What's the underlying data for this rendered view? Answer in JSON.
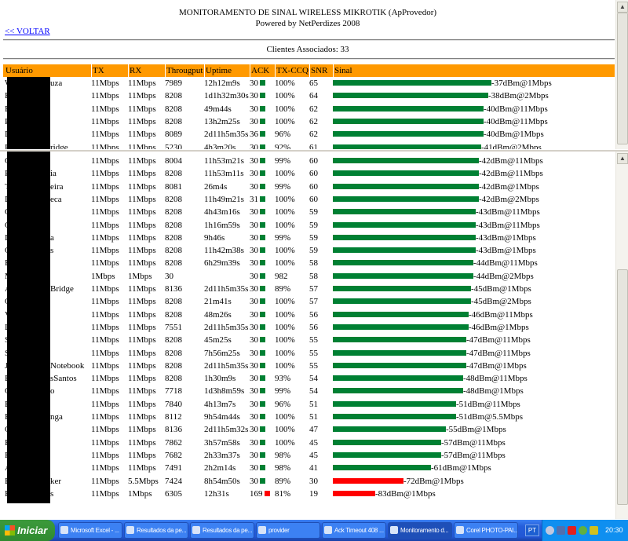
{
  "header": {
    "title": "MONITORAMENTO DE SINAL WIRELESS MIKROTIK (ApProvedor)",
    "subtitle": "Powered by NetPerdizes 2008",
    "back_link": "<< VOLTAR",
    "clients": "Clientes Associados: 33"
  },
  "columns": [
    "Usuário",
    "TX",
    "RX",
    "Througput",
    "Uptime",
    "ACK",
    "TX-CCQ",
    "SNR",
    "Sinal"
  ],
  "colors": {
    "header_bg": "#ff9900",
    "good_signal": "#008033",
    "bad_signal": "#ff0000"
  },
  "rows": [
    {
      "user": "W",
      "user_end": "uza",
      "tx": "11Mbps",
      "rx": "11Mbps",
      "thr": "7989",
      "up": "12h12m9s",
      "ack": "30",
      "ccq": "100%",
      "snr": "65",
      "dbm": -37,
      "signal": "-37dBm@1Mbps",
      "status": "good"
    },
    {
      "user": "E",
      "user_end": "",
      "tx": "11Mbps",
      "rx": "11Mbps",
      "thr": "8208",
      "up": "1d1h32m30s",
      "ack": "30",
      "ccq": "100%",
      "snr": "64",
      "dbm": -38,
      "signal": "-38dBm@2Mbps",
      "status": "good"
    },
    {
      "user": "B",
      "user_end": "",
      "tx": "11Mbps",
      "rx": "11Mbps",
      "thr": "8208",
      "up": "49m44s",
      "ack": "30",
      "ccq": "100%",
      "snr": "62",
      "dbm": -40,
      "signal": "-40dBm@11Mbps",
      "status": "good"
    },
    {
      "user": "P",
      "user_end": "",
      "tx": "11Mbps",
      "rx": "11Mbps",
      "thr": "8208",
      "up": "13h2m25s",
      "ack": "30",
      "ccq": "100%",
      "snr": "62",
      "dbm": -40,
      "signal": "-40dBm@11Mbps",
      "status": "good"
    },
    {
      "user": "D",
      "user_end": "",
      "tx": "11Mbps",
      "rx": "11Mbps",
      "thr": "8089",
      "up": "2d11h5m35s",
      "ack": "36",
      "ccq": "96%",
      "snr": "62",
      "dbm": -40,
      "signal": "-40dBm@1Mbps",
      "status": "good"
    },
    {
      "user": "P",
      "user_end": "ridge",
      "tx": "11Mbps",
      "rx": "11Mbps",
      "thr": "5230",
      "up": "4h3m20s",
      "ack": "30",
      "ccq": "92%",
      "snr": "61",
      "dbm": -41,
      "signal": "-41dBm@2Mbps",
      "status": "good"
    },
    {
      "user": "C",
      "user_end": "",
      "tx": "11Mbps",
      "rx": "11Mbps",
      "thr": "8004",
      "up": "11h53m21s",
      "ack": "30",
      "ccq": "99%",
      "snr": "60",
      "dbm": -42,
      "signal": "-42dBm@11Mbps",
      "status": "good"
    },
    {
      "user": "Pa",
      "user_end": "ia",
      "tx": "11Mbps",
      "rx": "11Mbps",
      "thr": "8208",
      "up": "11h53m11s",
      "ack": "30",
      "ccq": "100%",
      "snr": "60",
      "dbm": -42,
      "signal": "-42dBm@11Mbps",
      "status": "good"
    },
    {
      "user": "Te",
      "user_end": "eira",
      "tx": "11Mbps",
      "rx": "11Mbps",
      "thr": "8081",
      "up": "26m4s",
      "ack": "30",
      "ccq": "99%",
      "snr": "60",
      "dbm": -42,
      "signal": "-42dBm@1Mbps",
      "status": "good"
    },
    {
      "user": "D",
      "user_end": "eca",
      "tx": "11Mbps",
      "rx": "11Mbps",
      "thr": "8208",
      "up": "11h49m21s",
      "ack": "31",
      "ccq": "100%",
      "snr": "60",
      "dbm": -42,
      "signal": "-42dBm@2Mbps",
      "status": "good"
    },
    {
      "user": "C",
      "user_end": "",
      "tx": "11Mbps",
      "rx": "11Mbps",
      "thr": "8208",
      "up": "4h43m16s",
      "ack": "30",
      "ccq": "100%",
      "snr": "59",
      "dbm": -43,
      "signal": "-43dBm@11Mbps",
      "status": "good"
    },
    {
      "user": "C",
      "user_end": "",
      "tx": "11Mbps",
      "rx": "11Mbps",
      "thr": "8208",
      "up": "1h16m59s",
      "ack": "30",
      "ccq": "100%",
      "snr": "59",
      "dbm": -43,
      "signal": "-43dBm@11Mbps",
      "status": "good"
    },
    {
      "user": "D",
      "user_end": "a",
      "tx": "11Mbps",
      "rx": "11Mbps",
      "thr": "8208",
      "up": "9h46s",
      "ack": "30",
      "ccq": "99%",
      "snr": "59",
      "dbm": -43,
      "signal": "-43dBm@1Mbps",
      "status": "good"
    },
    {
      "user": "G",
      "user_end": "s",
      "tx": "11Mbps",
      "rx": "11Mbps",
      "thr": "8208",
      "up": "11h42m38s",
      "ack": "30",
      "ccq": "100%",
      "snr": "59",
      "dbm": -43,
      "signal": "-43dBm@1Mbps",
      "status": "good"
    },
    {
      "user": "E",
      "user_end": "",
      "tx": "11Mbps",
      "rx": "11Mbps",
      "thr": "8208",
      "up": "6h29m39s",
      "ack": "30",
      "ccq": "100%",
      "snr": "58",
      "dbm": -44,
      "signal": "-44dBm@11Mbps",
      "status": "good"
    },
    {
      "user": "M",
      "user_end": "",
      "tx": "1Mbps",
      "rx": "1Mbps",
      "thr": "30",
      "up": "",
      "ack": "30",
      "ccq": "982",
      "snr": "58",
      "dbm": -44,
      "signal": "-44dBm@2Mbps",
      "status": "good"
    },
    {
      "user": "A",
      "user_end": "Bridge",
      "tx": "11Mbps",
      "rx": "11Mbps",
      "thr": "8136",
      "up": "2d11h5m35s",
      "ack": "30",
      "ccq": "89%",
      "snr": "57",
      "dbm": -45,
      "signal": "-45dBm@1Mbps",
      "status": "good"
    },
    {
      "user": "G",
      "user_end": "",
      "tx": "11Mbps",
      "rx": "11Mbps",
      "thr": "8208",
      "up": "21m41s",
      "ack": "30",
      "ccq": "100%",
      "snr": "57",
      "dbm": -45,
      "signal": "-45dBm@2Mbps",
      "status": "good"
    },
    {
      "user": "V",
      "user_end": "",
      "tx": "11Mbps",
      "rx": "11Mbps",
      "thr": "8208",
      "up": "48m26s",
      "ack": "30",
      "ccq": "100%",
      "snr": "56",
      "dbm": -46,
      "signal": "-46dBm@11Mbps",
      "status": "good"
    },
    {
      "user": "La",
      "user_end": "",
      "tx": "11Mbps",
      "rx": "11Mbps",
      "thr": "7551",
      "up": "2d11h5m35s",
      "ack": "30",
      "ccq": "100%",
      "snr": "56",
      "dbm": -46,
      "signal": "-46dBm@1Mbps",
      "status": "good"
    },
    {
      "user": "Sa",
      "user_end": "",
      "tx": "11Mbps",
      "rx": "11Mbps",
      "thr": "8208",
      "up": "45m25s",
      "ack": "30",
      "ccq": "100%",
      "snr": "55",
      "dbm": -47,
      "signal": "-47dBm@11Mbps",
      "status": "good"
    },
    {
      "user": "Sy",
      "user_end": "",
      "tx": "11Mbps",
      "rx": "11Mbps",
      "thr": "8208",
      "up": "7h56m25s",
      "ack": "30",
      "ccq": "100%",
      "snr": "55",
      "dbm": -47,
      "signal": "-47dBm@11Mbps",
      "status": "good"
    },
    {
      "user": "Jo",
      "user_end": "Notebook",
      "tx": "11Mbps",
      "rx": "11Mbps",
      "thr": "8208",
      "up": "2d11h5m35s",
      "ack": "30",
      "ccq": "100%",
      "snr": "55",
      "dbm": -47,
      "signal": "-47dBm@1Mbps",
      "status": "good"
    },
    {
      "user": "Es",
      "user_end": "sSantos",
      "tx": "11Mbps",
      "rx": "11Mbps",
      "thr": "8208",
      "up": "1h30m9s",
      "ack": "30",
      "ccq": "93%",
      "snr": "54",
      "dbm": -48,
      "signal": "-48dBm@11Mbps",
      "status": "good"
    },
    {
      "user": "C",
      "user_end": "o",
      "tx": "11Mbps",
      "rx": "11Mbps",
      "thr": "7718",
      "up": "1d3h8m59s",
      "ack": "30",
      "ccq": "99%",
      "snr": "54",
      "dbm": -48,
      "signal": "-48dBm@1Mbps",
      "status": "good"
    },
    {
      "user": "Be",
      "user_end": "",
      "tx": "11Mbps",
      "rx": "11Mbps",
      "thr": "7840",
      "up": "4h13m7s",
      "ack": "30",
      "ccq": "96%",
      "snr": "51",
      "dbm": -51,
      "signal": "-51dBm@11Mbps",
      "status": "good"
    },
    {
      "user": "Es",
      "user_end": "nga",
      "tx": "11Mbps",
      "rx": "11Mbps",
      "thr": "8112",
      "up": "9h54m44s",
      "ack": "30",
      "ccq": "100%",
      "snr": "51",
      "dbm": -51,
      "signal": "-51dBm@5.5Mbps",
      "status": "good"
    },
    {
      "user": "C",
      "user_end": "",
      "tx": "11Mbps",
      "rx": "11Mbps",
      "thr": "8136",
      "up": "2d11h5m32s",
      "ack": "30",
      "ccq": "100%",
      "snr": "47",
      "dbm": -55,
      "signal": "-55dBm@1Mbps",
      "status": "good"
    },
    {
      "user": "Ba",
      "user_end": "",
      "tx": "11Mbps",
      "rx": "11Mbps",
      "thr": "7862",
      "up": "3h57m58s",
      "ack": "30",
      "ccq": "100%",
      "snr": "45",
      "dbm": -57,
      "signal": "-57dBm@11Mbps",
      "status": "good"
    },
    {
      "user": "Fe",
      "user_end": "",
      "tx": "11Mbps",
      "rx": "11Mbps",
      "thr": "7682",
      "up": "2h33m37s",
      "ack": "30",
      "ccq": "98%",
      "snr": "45",
      "dbm": -57,
      "signal": "-57dBm@11Mbps",
      "status": "good"
    },
    {
      "user": "Al",
      "user_end": "",
      "tx": "11Mbps",
      "rx": "11Mbps",
      "thr": "7491",
      "up": "2h2m14s",
      "ack": "30",
      "ccq": "98%",
      "snr": "41",
      "dbm": -61,
      "signal": "-61dBm@1Mbps",
      "status": "good"
    },
    {
      "user": "Es",
      "user_end": "ker",
      "tx": "11Mbps",
      "rx": "5.5Mbps",
      "thr": "7424",
      "up": "8h54m50s",
      "ack": "30",
      "ccq": "89%",
      "snr": "30",
      "dbm": -72,
      "signal": "-72dBm@1Mbps",
      "status": "bad"
    },
    {
      "user": "Ba",
      "user_end": "s",
      "tx": "11Mbps",
      "rx": "1Mbps",
      "thr": "6305",
      "up": "12h31s",
      "ack": "169",
      "ack_status": "bad",
      "ccq": "81%",
      "snr": "19",
      "dbm": -83,
      "signal": "-83dBm@1Mbps",
      "status": "bad"
    }
  ],
  "taskbar": {
    "start": "Iniciar",
    "tasks": [
      "Microsoft Excel - ...",
      "Resultados da pe...",
      "Resultados da pe...",
      "provider",
      "Ack Timeout 408 ...",
      "Monitoramento d...",
      "Corel PHOTO-PAI..."
    ],
    "active_task": 5,
    "lang": "PT",
    "clock": "20:30"
  }
}
